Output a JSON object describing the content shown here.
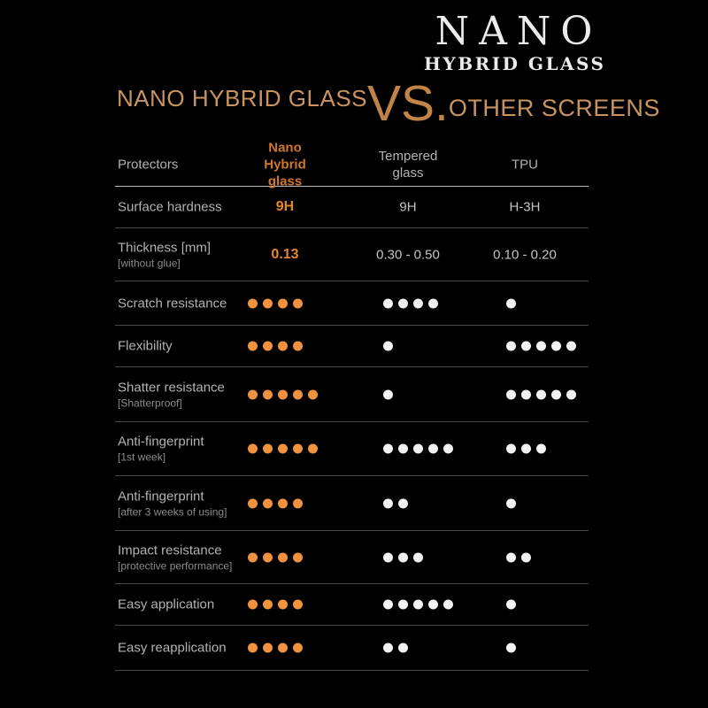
{
  "logo": {
    "name_top": "NANO",
    "name_bottom": "HYBRID GLASS"
  },
  "title": {
    "full": "NANO HYBRID GLASS VS. OTHER SCREENS",
    "left": "NANO HYBRID GLASS",
    "vs": "VS.",
    "right": "OTHER SCREENS"
  },
  "colors": {
    "background": "#000000",
    "dot_orange": "#f0923e",
    "dot_white": "#f2f2f2",
    "value_orange": "#e5862d",
    "header_orange": "#d1762d",
    "title_orange": "#c9945f",
    "vs_orange": "#c08449",
    "label_gray": "#b2b2b2",
    "sublabel_gray": "#8c8c8c",
    "value_gray": "#c4c4c4",
    "logo_white": "#ececec",
    "row_line": "#4a4a4a",
    "header_line": "#b7b7b7"
  },
  "chart_data": {
    "type": "table",
    "title": "NANO HYBRID GLASS VS. OTHER SCREENS",
    "rating_scale": [
      0,
      5
    ],
    "legend": "dot rows are ratings out of 5; nano column dots orange, others white",
    "header": {
      "protectors": "Protectors",
      "nano": [
        "Nano",
        "Hybrid glass"
      ],
      "tempered": [
        "Tempered",
        "glass"
      ],
      "tpu": "TPU"
    },
    "rows": [
      {
        "label": "Surface hardness",
        "sublabel": "",
        "kind": "text",
        "nano": "9H",
        "tempered": "9H",
        "tpu": "H-3H"
      },
      {
        "label": "Thickness [mm]",
        "sublabel": "[without glue]",
        "kind": "text",
        "nano": "0.13",
        "tempered": "0.30 - 0.50",
        "tpu": "0.10 - 0.20"
      },
      {
        "label": "Scratch resistance",
        "sublabel": "",
        "kind": "dots",
        "nano": 4,
        "tempered": 4,
        "tpu": 1
      },
      {
        "label": "Flexibility",
        "sublabel": "",
        "kind": "dots",
        "nano": 4,
        "tempered": 1,
        "tpu": 5
      },
      {
        "label": "Shatter resistance",
        "sublabel": "[Shatterproof]",
        "kind": "dots",
        "nano": 5,
        "tempered": 1,
        "tpu": 5
      },
      {
        "label": "Anti-fingerprint",
        "sublabel": "[1st week]",
        "kind": "dots",
        "nano": 5,
        "tempered": 5,
        "tpu": 3
      },
      {
        "label": "Anti-fingerprint",
        "sublabel": "[after 3 weeks of using]",
        "kind": "dots",
        "nano": 4,
        "tempered": 2,
        "tpu": 1
      },
      {
        "label": "Impact resistance",
        "sublabel": "[protective performance]",
        "kind": "dots",
        "nano": 4,
        "tempered": 3,
        "tpu": 2
      },
      {
        "label": "Easy application",
        "sublabel": "",
        "kind": "dots",
        "nano": 4,
        "tempered": 5,
        "tpu": 1
      },
      {
        "label": "Easy reapplication",
        "sublabel": "",
        "kind": "dots",
        "nano": 4,
        "tempered": 2,
        "tpu": 1
      }
    ]
  }
}
